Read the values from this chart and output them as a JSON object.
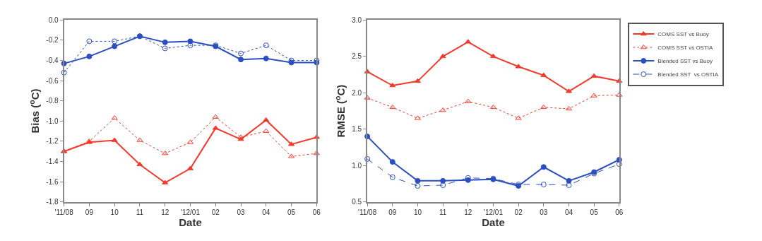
{
  "chart_data": [
    {
      "type": "line",
      "xlabel": "Date",
      "ylabel": "Bias ($^{o}$C)",
      "categories": [
        "'11/08",
        "09",
        "10",
        "11",
        "12",
        "'12/01",
        "02",
        "03",
        "04",
        "05",
        "06"
      ],
      "series": [
        {
          "color": "#2b4fc0",
          "marker": "circle",
          "line_style": "solid",
          "values": [
            -0.43,
            -0.36,
            -0.26,
            -0.16,
            -0.22,
            -0.21,
            -0.26,
            -0.39,
            -0.38,
            -0.42,
            -0.42
          ]
        },
        {
          "color": "#2b4fc0",
          "marker": "circle",
          "line_style": "dotted",
          "values": [
            -0.52,
            -0.21,
            -0.21,
            -0.16,
            -0.28,
            -0.25,
            -0.25,
            -0.33,
            -0.25,
            -0.4,
            -0.4
          ]
        },
        {
          "color": "#f23b2c",
          "marker": "triangle",
          "line_style": "solid",
          "values": [
            -1.3,
            -1.21,
            -1.19,
            -1.43,
            -1.61,
            -1.47,
            -1.07,
            -1.18,
            -0.99,
            -1.23,
            -1.16
          ]
        },
        {
          "color": "#f23b2c",
          "marker": "triangle",
          "line_style": "dotted",
          "values": [
            -1.3,
            -1.2,
            -0.97,
            -1.19,
            -1.32,
            -1.21,
            -0.96,
            -1.16,
            -1.1,
            -1.35,
            -1.32
          ]
        }
      ],
      "ylim": [
        -1.8,
        0.0
      ],
      "yticks": [
        {
          "value": -1.8,
          "label": "-1.8"
        },
        {
          "value": -1.6,
          "label": "-1.6"
        },
        {
          "value": -1.4,
          "label": "-1.4"
        },
        {
          "value": -1.2,
          "label": "-1.2"
        },
        {
          "value": -1.0,
          "label": "-1.0"
        },
        {
          "value": -0.8,
          "label": "-0.8"
        },
        {
          "value": -0.6,
          "label": "-0.6"
        },
        {
          "value": -0.4,
          "label": "-0.4"
        },
        {
          "value": -0.2,
          "label": "-0.2"
        },
        {
          "value": 0.0,
          "label": "0.0"
        }
      ],
      "grid": false,
      "legend": false
    },
    {
      "type": "line",
      "xlabel": "Date",
      "ylabel": "RMSE ($^{o}$C)",
      "categories": [
        "'11/08",
        "09",
        "10",
        "11",
        "12",
        "'12/01",
        "02",
        "03",
        "04",
        "05",
        "06"
      ],
      "series": [
        {
          "name": "COMS SST vs Buoy",
          "color": "#f23b2c",
          "marker": "triangle",
          "line_style": "solid",
          "values": [
            2.29,
            2.1,
            2.16,
            2.5,
            2.7,
            2.5,
            2.36,
            2.24,
            2.02,
            2.23,
            2.16
          ]
        },
        {
          "name": "COMS SST vs OSTIA",
          "color": "#f23b2c",
          "marker": "triangle",
          "line_style": "dotted",
          "values": [
            1.93,
            1.8,
            1.65,
            1.76,
            1.88,
            1.8,
            1.65,
            1.8,
            1.78,
            1.96,
            1.97
          ]
        },
        {
          "name": "Blended SST vs Buoy",
          "color": "#2b4fc0",
          "marker": "circle",
          "line_style": "solid",
          "values": [
            1.4,
            1.05,
            0.79,
            0.79,
            0.8,
            0.81,
            0.72,
            0.98,
            0.79,
            0.91,
            1.08
          ]
        },
        {
          "name": "Blended SST  vs OSTIA",
          "color": "#2b4fc0",
          "marker": "circle",
          "line_style": "dashed",
          "values": [
            1.09,
            0.84,
            0.72,
            0.73,
            0.83,
            0.82,
            0.74,
            0.74,
            0.73,
            0.89,
            1.02
          ]
        }
      ],
      "ylim": [
        0.5,
        3.0
      ],
      "yticks": [
        {
          "value": 0.5,
          "label": "0.5"
        },
        {
          "value": 1.0,
          "label": "1.0"
        },
        {
          "value": 1.5,
          "label": "1.5"
        },
        {
          "value": 2.0,
          "label": "2.0"
        },
        {
          "value": 2.5,
          "label": "2.5"
        },
        {
          "value": 3.0,
          "label": "3.0"
        }
      ],
      "grid": false,
      "legend": "right"
    }
  ]
}
